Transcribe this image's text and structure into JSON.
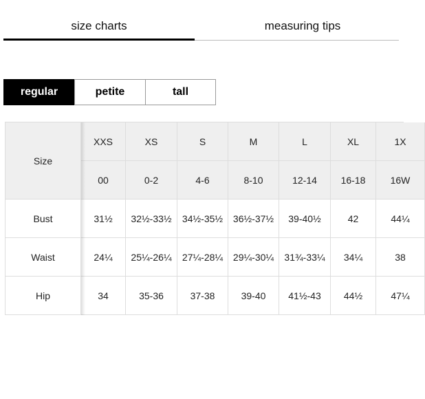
{
  "tabs": [
    "size charts",
    "measuring tips"
  ],
  "fits": [
    "regular",
    "petite",
    "tall"
  ],
  "table": {
    "corner": "Size",
    "sizes": [
      "XXS",
      "XS",
      "S",
      "M",
      "L",
      "XL",
      "1X"
    ],
    "numbers": [
      "00",
      "0-2",
      "4-6",
      "8-10",
      "12-14",
      "16-18",
      "16W"
    ],
    "rows": [
      {
        "label": "Bust",
        "values": [
          "31½",
          "32½-33½",
          "34½-35½",
          "36½-37½",
          "39-40½",
          "42",
          "44¼"
        ]
      },
      {
        "label": "Waist",
        "values": [
          "24¼",
          "25¼-26¼",
          "27¼-28¼",
          "29¼-30¼",
          "31¾-33¼",
          "34¼",
          "38"
        ]
      },
      {
        "label": "Hip",
        "values": [
          "34",
          "35-36",
          "37-38",
          "39-40",
          "41½-43",
          "44½",
          "47¼"
        ]
      }
    ]
  }
}
